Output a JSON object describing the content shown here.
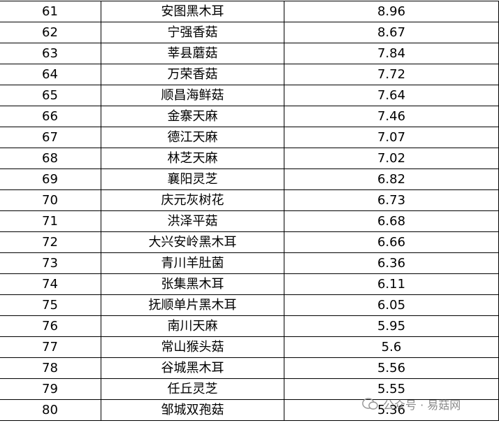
{
  "table": {
    "rows": [
      [
        "61",
        "安图黑木耳",
        "8.96"
      ],
      [
        "62",
        "宁强香菇",
        "8.67"
      ],
      [
        "63",
        "莘县蘑菇",
        "7.84"
      ],
      [
        "64",
        "万荣香菇",
        "7.72"
      ],
      [
        "65",
        "顺昌海鲜菇",
        "7.64"
      ],
      [
        "66",
        "金寨天麻",
        "7.46"
      ],
      [
        "67",
        "德江天麻",
        "7.07"
      ],
      [
        "68",
        "林芝天麻",
        "7.02"
      ],
      [
        "69",
        "襄阳灵芝",
        "6.82"
      ],
      [
        "70",
        "庆元灰树花",
        "6.73"
      ],
      [
        "71",
        "洪泽平菇",
        "6.68"
      ],
      [
        "72",
        "大兴安岭黑木耳",
        "6.66"
      ],
      [
        "73",
        "青川羊肚菌",
        "6.36"
      ],
      [
        "74",
        "张集黑木耳",
        "6.11"
      ],
      [
        "75",
        "抚顺单片黑木耳",
        "6.05"
      ],
      [
        "76",
        "南川天麻",
        "5.95"
      ],
      [
        "77",
        "常山猴头菇",
        "5.6"
      ],
      [
        "78",
        "谷城黑木耳",
        "5.56"
      ],
      [
        "79",
        "任丘灵芝",
        "5.55"
      ],
      [
        "80",
        "邹城双孢菇",
        "5.36"
      ]
    ]
  },
  "watermark": "公众号 · 易菇网"
}
